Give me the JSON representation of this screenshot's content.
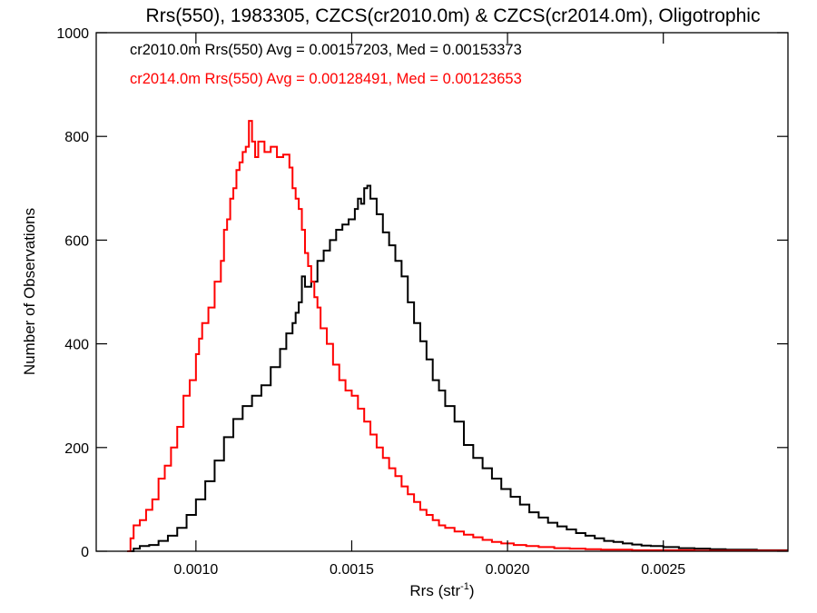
{
  "chart_data": {
    "type": "line",
    "step": true,
    "title": "Rrs(550), 1983305, CZCS(cr2010.0m) & CZCS(cr2014.0m), Oligotrophic",
    "xlabel": "Rrs (str",
    "xlabel_sup": "-1",
    "xlabel_end": ")",
    "ylabel": "Number of Observations",
    "xlim": [
      0.00068,
      0.0029
    ],
    "ylim": [
      0,
      1000
    ],
    "grid": false,
    "x_ticks": [
      0.001,
      0.0015,
      0.002,
      0.0025
    ],
    "x_tick_labels": [
      "0.0010",
      "0.0015",
      "0.0020",
      "0.0025"
    ],
    "y_ticks": [
      0,
      200,
      400,
      600,
      800,
      1000
    ],
    "y_tick_labels": [
      "0",
      "200",
      "400",
      "600",
      "800",
      "1000"
    ],
    "annotations": [
      {
        "text": "cr2010.0m Rrs(550) Avg = 0.00157203, Med = 0.00153373",
        "color": "#000000"
      },
      {
        "text": "cr2014.0m Rrs(550) Avg = 0.00128491, Med = 0.00123653",
        "color": "#ff0000"
      }
    ],
    "series": [
      {
        "color": "#000000",
        "points": [
          [
            0.00078,
            0
          ],
          [
            0.0008,
            5
          ],
          [
            0.00082,
            10
          ],
          [
            0.00085,
            12
          ],
          [
            0.00088,
            20
          ],
          [
            0.00091,
            30
          ],
          [
            0.00094,
            45
          ],
          [
            0.00097,
            70
          ],
          [
            0.001,
            100
          ],
          [
            0.00103,
            135
          ],
          [
            0.00106,
            175
          ],
          [
            0.00109,
            220
          ],
          [
            0.00112,
            255
          ],
          [
            0.00115,
            280
          ],
          [
            0.00118,
            300
          ],
          [
            0.00121,
            320
          ],
          [
            0.00124,
            355
          ],
          [
            0.00127,
            390
          ],
          [
            0.00129,
            420
          ],
          [
            0.00131,
            440
          ],
          [
            0.00132,
            460
          ],
          [
            0.00133,
            480
          ],
          [
            0.00134,
            530
          ],
          [
            0.00135,
            510
          ],
          [
            0.00137,
            520
          ],
          [
            0.00139,
            560
          ],
          [
            0.00141,
            580
          ],
          [
            0.00143,
            600
          ],
          [
            0.00145,
            620
          ],
          [
            0.00147,
            630
          ],
          [
            0.00149,
            640
          ],
          [
            0.00151,
            660
          ],
          [
            0.00152,
            680
          ],
          [
            0.00153,
            670
          ],
          [
            0.00154,
            700
          ],
          [
            0.00155,
            705
          ],
          [
            0.00156,
            680
          ],
          [
            0.00158,
            650
          ],
          [
            0.0016,
            615
          ],
          [
            0.00162,
            590
          ],
          [
            0.00164,
            560
          ],
          [
            0.00166,
            530
          ],
          [
            0.00168,
            480
          ],
          [
            0.0017,
            440
          ],
          [
            0.00172,
            405
          ],
          [
            0.00174,
            370
          ],
          [
            0.00176,
            330
          ],
          [
            0.00178,
            310
          ],
          [
            0.0018,
            280
          ],
          [
            0.00183,
            250
          ],
          [
            0.00186,
            205
          ],
          [
            0.00189,
            180
          ],
          [
            0.00192,
            160
          ],
          [
            0.00195,
            140
          ],
          [
            0.00198,
            120
          ],
          [
            0.00201,
            105
          ],
          [
            0.00204,
            90
          ],
          [
            0.00207,
            75
          ],
          [
            0.0021,
            65
          ],
          [
            0.00213,
            55
          ],
          [
            0.00216,
            48
          ],
          [
            0.00219,
            42
          ],
          [
            0.00222,
            35
          ],
          [
            0.00225,
            30
          ],
          [
            0.00228,
            25
          ],
          [
            0.00231,
            20
          ],
          [
            0.00234,
            18
          ],
          [
            0.00237,
            15
          ],
          [
            0.0024,
            13
          ],
          [
            0.00243,
            11
          ],
          [
            0.00246,
            10
          ],
          [
            0.0025,
            8
          ],
          [
            0.00255,
            6
          ],
          [
            0.0026,
            5
          ],
          [
            0.00265,
            4
          ],
          [
            0.0027,
            3
          ],
          [
            0.00275,
            3
          ],
          [
            0.0028,
            2
          ],
          [
            0.00285,
            2
          ],
          [
            0.0029,
            2
          ]
        ]
      },
      {
        "color": "#ff0000",
        "points": [
          [
            0.00078,
            0
          ],
          [
            0.00079,
            25
          ],
          [
            0.0008,
            50
          ],
          [
            0.00082,
            60
          ],
          [
            0.00084,
            80
          ],
          [
            0.00086,
            100
          ],
          [
            0.00088,
            140
          ],
          [
            0.0009,
            165
          ],
          [
            0.00092,
            200
          ],
          [
            0.00094,
            240
          ],
          [
            0.00096,
            300
          ],
          [
            0.00098,
            330
          ],
          [
            0.001,
            380
          ],
          [
            0.00101,
            410
          ],
          [
            0.00102,
            440
          ],
          [
            0.00104,
            470
          ],
          [
            0.00106,
            520
          ],
          [
            0.00108,
            560
          ],
          [
            0.00109,
            620
          ],
          [
            0.0011,
            640
          ],
          [
            0.00111,
            680
          ],
          [
            0.00112,
            700
          ],
          [
            0.00113,
            735
          ],
          [
            0.00114,
            750
          ],
          [
            0.00115,
            770
          ],
          [
            0.00116,
            780
          ],
          [
            0.00117,
            830
          ],
          [
            0.00118,
            790
          ],
          [
            0.00119,
            760
          ],
          [
            0.0012,
            790
          ],
          [
            0.00122,
            770
          ],
          [
            0.00124,
            780
          ],
          [
            0.00126,
            760
          ],
          [
            0.00128,
            765
          ],
          [
            0.0013,
            740
          ],
          [
            0.00131,
            700
          ],
          [
            0.00132,
            680
          ],
          [
            0.00133,
            660
          ],
          [
            0.00134,
            620
          ],
          [
            0.00135,
            575
          ],
          [
            0.00136,
            550
          ],
          [
            0.00137,
            520
          ],
          [
            0.00138,
            490
          ],
          [
            0.00139,
            470
          ],
          [
            0.0014,
            430
          ],
          [
            0.00142,
            400
          ],
          [
            0.00144,
            360
          ],
          [
            0.00146,
            330
          ],
          [
            0.00148,
            310
          ],
          [
            0.0015,
            300
          ],
          [
            0.00152,
            275
          ],
          [
            0.00154,
            250
          ],
          [
            0.00156,
            225
          ],
          [
            0.00158,
            200
          ],
          [
            0.0016,
            180
          ],
          [
            0.00162,
            160
          ],
          [
            0.00164,
            145
          ],
          [
            0.00166,
            125
          ],
          [
            0.00168,
            110
          ],
          [
            0.0017,
            95
          ],
          [
            0.00172,
            80
          ],
          [
            0.00174,
            70
          ],
          [
            0.00176,
            60
          ],
          [
            0.00178,
            50
          ],
          [
            0.0018,
            45
          ],
          [
            0.00183,
            38
          ],
          [
            0.00186,
            32
          ],
          [
            0.00189,
            27
          ],
          [
            0.00192,
            22
          ],
          [
            0.00195,
            18
          ],
          [
            0.00198,
            15
          ],
          [
            0.00202,
            12
          ],
          [
            0.00206,
            10
          ],
          [
            0.0021,
            8
          ],
          [
            0.00215,
            6
          ],
          [
            0.0022,
            5
          ],
          [
            0.00225,
            4
          ],
          [
            0.0023,
            3
          ],
          [
            0.0024,
            2
          ],
          [
            0.0025,
            2
          ],
          [
            0.0026,
            1
          ],
          [
            0.0027,
            1
          ],
          [
            0.0028,
            1
          ],
          [
            0.0029,
            1
          ]
        ]
      }
    ]
  }
}
